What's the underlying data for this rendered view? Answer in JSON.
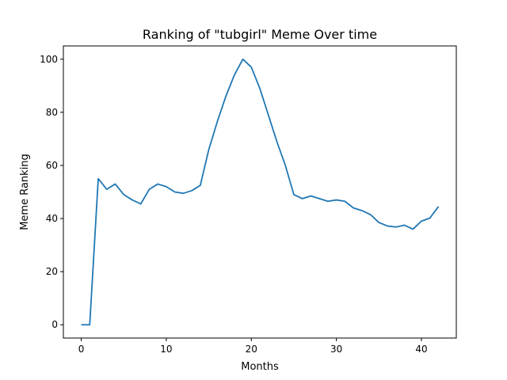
{
  "chart_data": {
    "type": "line",
    "title": "Ranking of \"tubgirl\" Meme Over time",
    "xlabel": "Months",
    "ylabel": "Meme Ranking",
    "xlim": [
      -2.1,
      44.1
    ],
    "ylim": [
      -5,
      105
    ],
    "xticks": [
      0,
      10,
      20,
      30,
      40
    ],
    "yticks": [
      0,
      20,
      40,
      60,
      80,
      100
    ],
    "grid": false,
    "series": [
      {
        "color": "#1f77b4",
        "x": [
          0,
          1,
          2,
          3,
          4,
          5,
          6,
          7,
          8,
          9,
          10,
          11,
          12,
          13,
          14,
          15,
          16,
          17,
          18,
          19,
          20,
          21,
          22,
          23,
          24,
          25,
          26,
          27,
          28,
          29,
          30,
          31,
          32,
          33,
          34,
          35,
          36,
          37,
          38,
          39,
          40,
          41,
          42
        ],
        "values": [
          0,
          0,
          55,
          51,
          53,
          49,
          47,
          45.5,
          51,
          53,
          52,
          50,
          49.5,
          50.5,
          52.5,
          66,
          76.5,
          86,
          94,
          100,
          97,
          89,
          79,
          69,
          60,
          49,
          47.5,
          48.5,
          47.5,
          46.5,
          47,
          46.5,
          44,
          43,
          41.5,
          38.5,
          37.2,
          36.8,
          37.5,
          36,
          39,
          40.2,
          44.5
        ]
      }
    ]
  }
}
